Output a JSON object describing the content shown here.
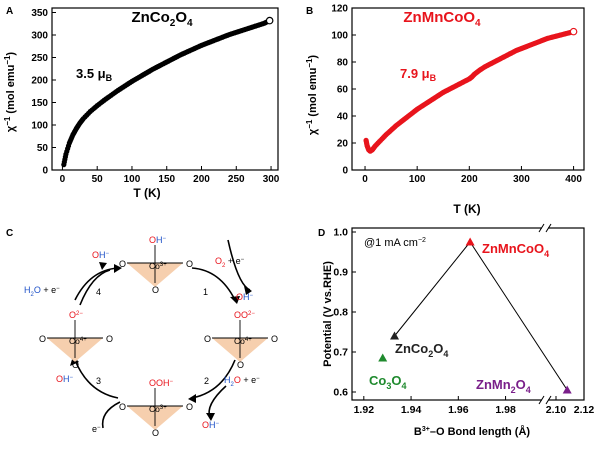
{
  "panels": {
    "A": {
      "letter": "A"
    },
    "B": {
      "letter": "B"
    },
    "C": {
      "letter": "C"
    },
    "D": {
      "letter": "D"
    }
  },
  "chart_data": [
    {
      "id": "A",
      "type": "scatter",
      "title": "ZnCo2O4",
      "title_color": "#000000",
      "xlabel": "T (K)",
      "ylabel": "χ−1 (mol emu−1)",
      "xlim": [
        -15,
        310
      ],
      "ylim": [
        0,
        360
      ],
      "xticks": [
        0,
        50,
        100,
        150,
        200,
        250,
        300
      ],
      "yticks": [
        0,
        50,
        100,
        150,
        200,
        250,
        300,
        350
      ],
      "marker_color": "#000000",
      "annotation": "3.5 μB",
      "x": [
        2,
        5,
        10,
        15,
        20,
        25,
        30,
        40,
        50,
        60,
        70,
        80,
        90,
        100,
        110,
        120,
        130,
        140,
        150,
        160,
        170,
        180,
        190,
        200,
        210,
        220,
        230,
        240,
        250,
        260,
        270,
        280,
        290,
        298
      ],
      "y": [
        12,
        35,
        60,
        78,
        92,
        104,
        114,
        130,
        143,
        155,
        166,
        177,
        187,
        197,
        206,
        215,
        224,
        232,
        240,
        248,
        256,
        263,
        270,
        277,
        283,
        289,
        295,
        301,
        306,
        311,
        316,
        321,
        326,
        332
      ]
    },
    {
      "id": "B",
      "type": "scatter",
      "title": "ZnMnCoO4",
      "title_color": "#e8141c",
      "xlabel": "T (K)",
      "ylabel": "χ−1 (mol emu−1)",
      "xlim": [
        -25,
        420
      ],
      "ylim": [
        0,
        120
      ],
      "xticks": [
        0,
        100,
        200,
        300,
        400
      ],
      "yticks": [
        0,
        20,
        40,
        60,
        80,
        100,
        120
      ],
      "marker_color": "#e8141c",
      "annotation": "7.9 μB",
      "x": [
        2,
        4,
        7,
        10,
        14,
        20,
        30,
        40,
        50,
        60,
        70,
        80,
        90,
        100,
        110,
        120,
        130,
        140,
        150,
        160,
        170,
        180,
        190,
        200,
        205,
        210,
        220,
        230,
        240,
        250,
        260,
        270,
        280,
        290,
        300,
        310,
        320,
        330,
        340,
        350,
        360,
        370,
        380,
        390,
        400
      ],
      "y": [
        22,
        18,
        15,
        14,
        15,
        18,
        22,
        26,
        29.5,
        33,
        36,
        39,
        42,
        45,
        47.5,
        50,
        52.5,
        55,
        57.5,
        59.5,
        61.5,
        63.5,
        65.5,
        67.5,
        69,
        71,
        74,
        76.5,
        78.5,
        80.5,
        82.5,
        84.5,
        86.5,
        88.5,
        90,
        91.5,
        93,
        94.5,
        96,
        97.5,
        98.5,
        99.5,
        100.5,
        101.5,
        102.5
      ]
    },
    {
      "id": "D",
      "type": "scatter",
      "xlabel": "B3+–O Bond length (Å)",
      "ylabel": "Potential (V vs.RHE)",
      "xlim": [
        1.915,
        2.12
      ],
      "ylim": [
        0.58,
        1.01
      ],
      "xticks": [
        "1.92",
        "1.94",
        "1.96",
        "1.98",
        "2.10",
        "2.12"
      ],
      "yticks": [
        "0.6",
        "0.7",
        "0.8",
        "0.9",
        "1.0"
      ],
      "axis_break": true,
      "condition": "@1 mA cm−2",
      "points": [
        {
          "name": "ZnMnCoO4",
          "x": 1.965,
          "y": 0.975,
          "color": "#e8141c"
        },
        {
          "name": "ZnCo2O4",
          "x": 1.933,
          "y": 0.74,
          "color": "#222222"
        },
        {
          "name": "Co3O4",
          "x": 1.928,
          "y": 0.685,
          "color": "#1f8a2e"
        },
        {
          "name": "ZnMn2O4",
          "x": 2.108,
          "y": 0.605,
          "color": "#7a1f8a"
        }
      ]
    }
  ],
  "diagram": {
    "nodes": [
      {
        "metal": "Co3+",
        "ligand": "OH−"
      },
      {
        "metal": "Co4+",
        "ligand": "OO2−"
      },
      {
        "metal": "Co3+",
        "ligand": "OOH−"
      },
      {
        "metal": "Co4+",
        "ligand": "O2−"
      }
    ],
    "oxygen": "O",
    "steps": [
      {
        "number": "1",
        "in": "O2 + e−",
        "out": "OH−"
      },
      {
        "number": "2",
        "in": "H2O + e−",
        "out": "OH−"
      },
      {
        "number": "3",
        "in": "e−",
        "out": "OH−"
      },
      {
        "number": "4",
        "in": "H2O + e−",
        "out": "OH−"
      }
    ]
  }
}
